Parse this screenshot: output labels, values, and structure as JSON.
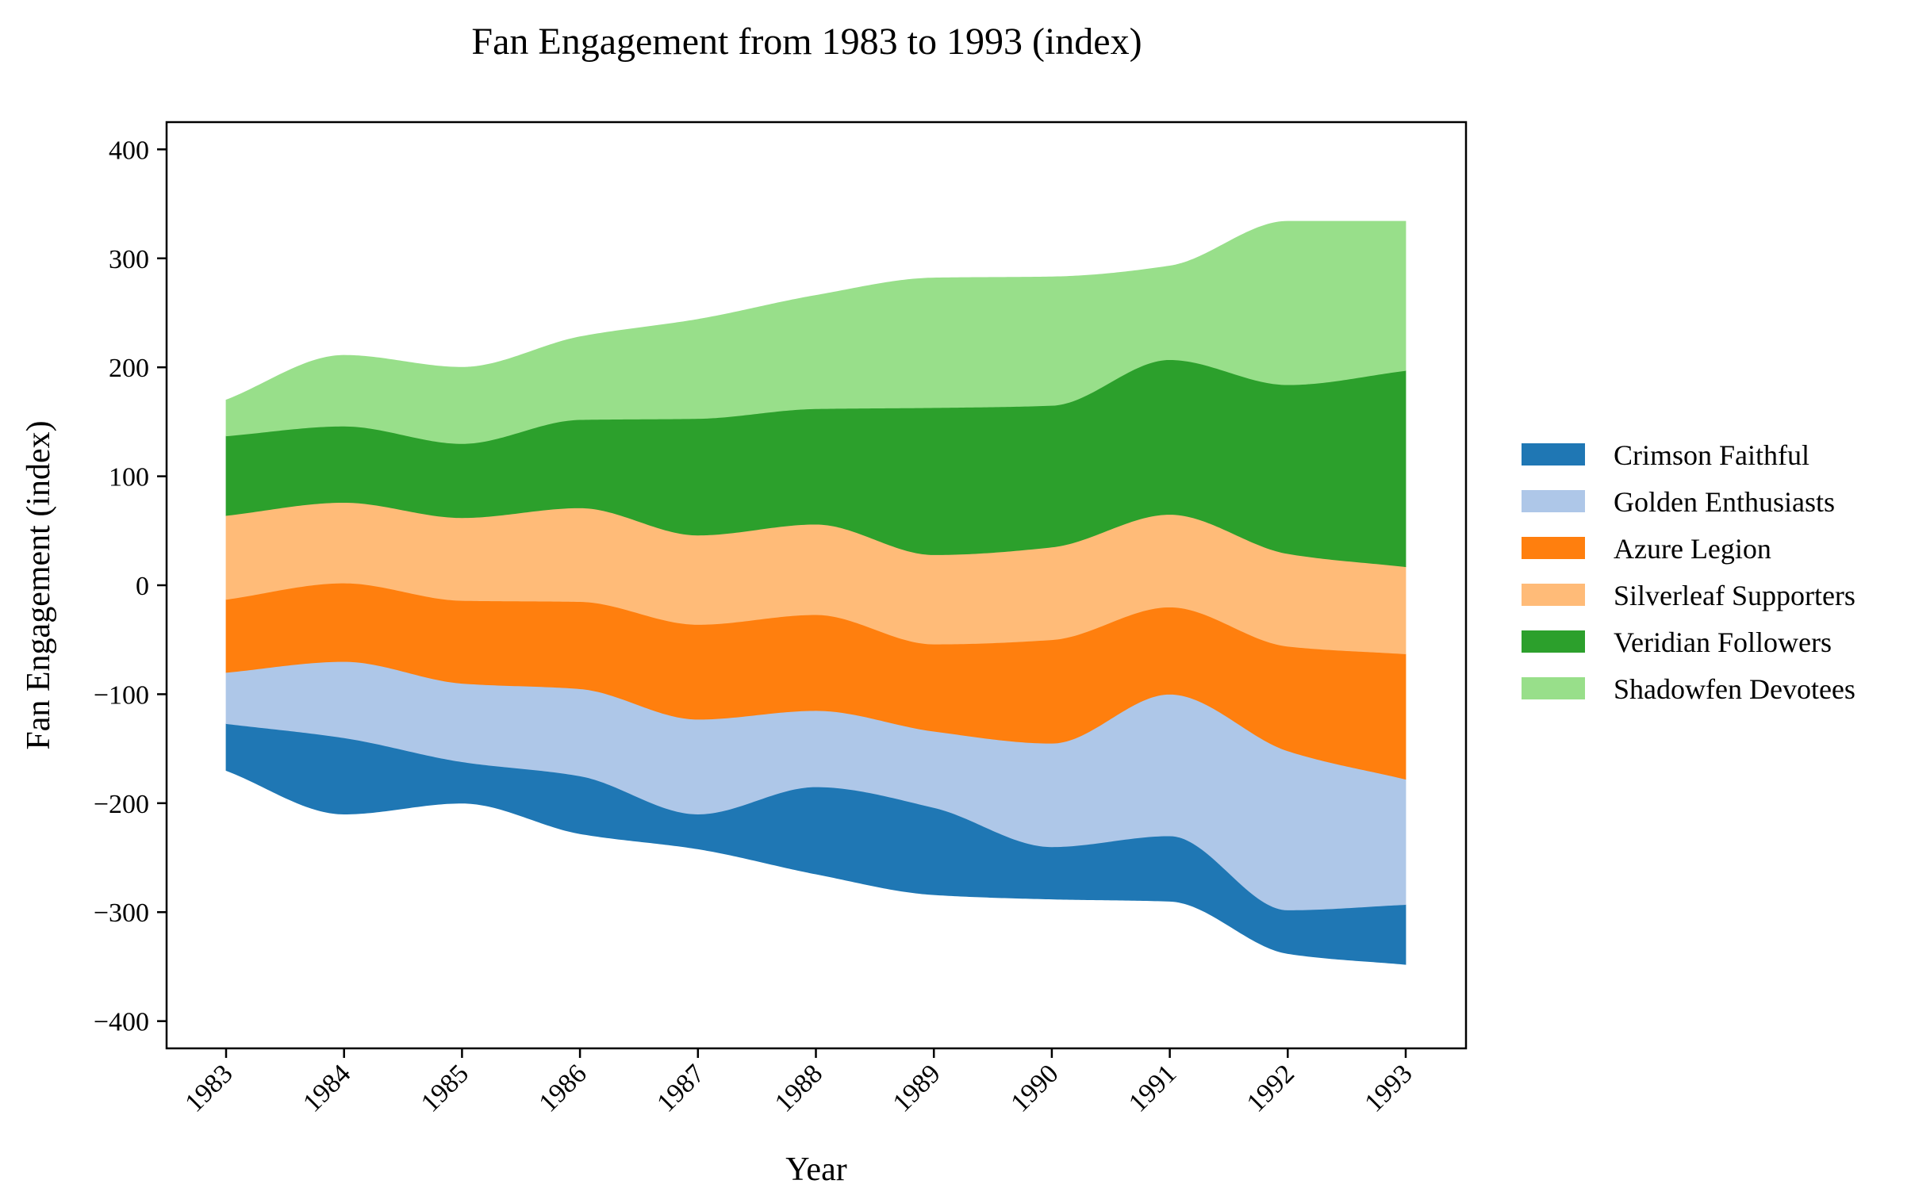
{
  "chart_data": {
    "type": "area",
    "title": "Fan Engagement from 1983 to 1993 (index)",
    "xlabel": "Year",
    "ylabel": "Fan Engagement (index)",
    "ylim": [
      -425,
      425
    ],
    "yticks": [
      -400,
      -300,
      -200,
      -100,
      0,
      100,
      200,
      300,
      400
    ],
    "x": [
      "1983",
      "1984",
      "1985",
      "1986",
      "1987",
      "1988",
      "1989",
      "1990",
      "1991",
      "1992",
      "1993"
    ],
    "baseline": [
      -170,
      -210,
      -200,
      -228,
      -242,
      -265,
      -284,
      -288,
      -290,
      -338,
      -348
    ],
    "series": [
      {
        "name": "Crimson Faithful",
        "color": "#1f77b4",
        "values": [
          43,
          70,
          38,
          53,
          32,
          80,
          80,
          48,
          60,
          40,
          55
        ]
      },
      {
        "name": "Golden Enthusiasts",
        "color": "#aec7e8",
        "values": [
          47,
          70,
          72,
          80,
          87,
          70,
          70,
          95,
          130,
          146,
          115
        ]
      },
      {
        "name": "Azure Legion",
        "color": "#ff7f0e",
        "values": [
          67,
          72,
          76,
          80,
          87,
          88,
          80,
          95,
          80,
          96,
          115
        ]
      },
      {
        "name": "Silverleaf Supporters",
        "color": "#ffbb78",
        "values": [
          77,
          74,
          76,
          86,
          82,
          83,
          82,
          85,
          85,
          85,
          80
        ]
      },
      {
        "name": "Veridian Followers",
        "color": "#2ca02c",
        "values": [
          73,
          70,
          68,
          81,
          107,
          106,
          135,
          130,
          142,
          155,
          180
        ]
      },
      {
        "name": "Shadowfen Devotees",
        "color": "#98df8a",
        "values": [
          33,
          65,
          70,
          76,
          91,
          104,
          119,
          118,
          86,
          150,
          137
        ]
      }
    ],
    "legend": "right"
  }
}
